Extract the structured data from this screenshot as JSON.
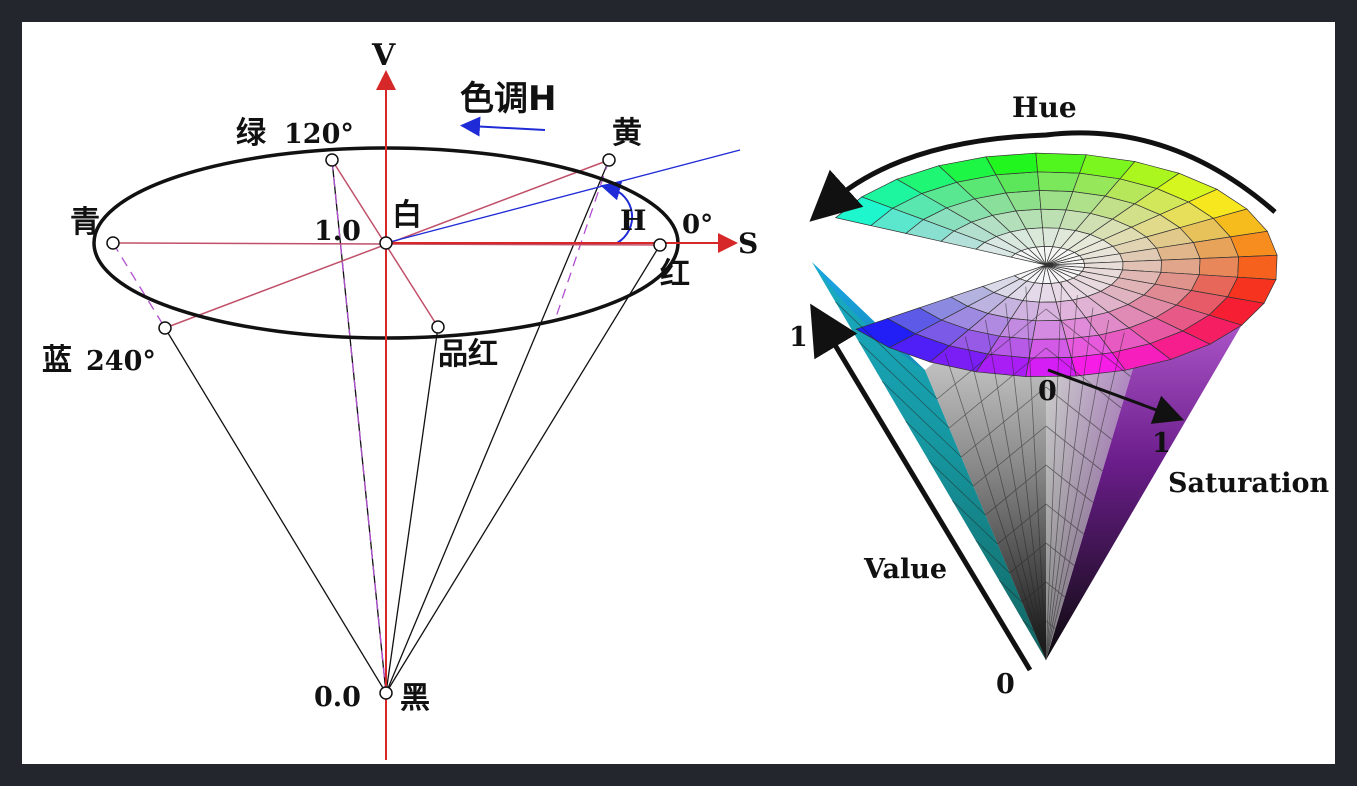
{
  "left_diagram": {
    "axis_v": "V",
    "axis_s": "S",
    "hue_label": "色调H",
    "angle_label": "H",
    "top_value": "1.0",
    "bottom_value": "0.0",
    "white": "白",
    "black": "黑",
    "green": "绿",
    "green_deg": "120°",
    "yellow": "黄",
    "red": "红",
    "red_deg": "0°",
    "cyan": "青",
    "blue": "蓝",
    "blue_deg": "240°",
    "magenta": "品红",
    "colors": {
      "axis": "#d62828",
      "hue_arrow": "#1f2bd6",
      "guide_line": "#c0506a",
      "dashed": "#b04fd0",
      "outline": "#111111"
    }
  },
  "right_diagram": {
    "hue": "Hue",
    "saturation": "Saturation",
    "value": "Value",
    "value_top": "1",
    "value_bottom": "0",
    "sat_start": "0",
    "sat_end": "1"
  }
}
